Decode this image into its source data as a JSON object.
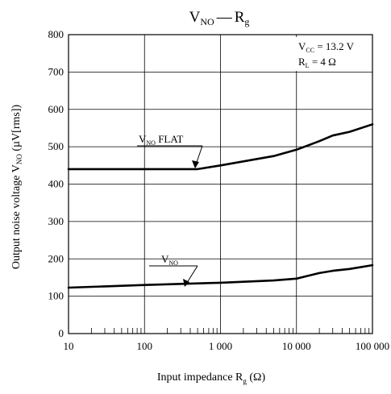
{
  "chart_data": {
    "type": "line",
    "title": {
      "main": "V",
      "main_sub": "NO",
      "dash": "—",
      "rhs": "R",
      "rhs_sub": "g"
    },
    "xlabel": {
      "text": "Input impedance  R",
      "sub": "g",
      "unit": "  (Ω)"
    },
    "ylabel": {
      "text": "Output noise voltage  V",
      "sub": "NO",
      "unit": "  (µV[rms])"
    },
    "x_scale": "log",
    "xlim": [
      10,
      100000
    ],
    "ylim": [
      0,
      800
    ],
    "x_ticks": [
      {
        "value": 10,
        "label": "10"
      },
      {
        "value": 100,
        "label": "100"
      },
      {
        "value": 1000,
        "label": "1 000"
      },
      {
        "value": 10000,
        "label": "10 000"
      },
      {
        "value": 100000,
        "label": "100 000"
      }
    ],
    "y_ticks": [
      0,
      100,
      200,
      300,
      400,
      500,
      600,
      700,
      800
    ],
    "y_tick_labels": [
      "0",
      "100",
      "200",
      "300",
      "400",
      "500",
      "600",
      "700",
      "800"
    ],
    "grid": true,
    "conditions": [
      {
        "text": "V",
        "sub": "CC",
        "rest": " = 13.2 V"
      },
      {
        "text": "R",
        "sub": "L",
        "rest": " = 4 Ω"
      }
    ],
    "series": [
      {
        "name": "V_NO FLAT",
        "label": {
          "main": "V",
          "sub": "NO",
          "rest": " FLAT"
        },
        "x": [
          10,
          100,
          500,
          1000,
          5000,
          10000,
          20000,
          30000,
          50000,
          100000
        ],
        "y": [
          440,
          440,
          440,
          450,
          475,
          492,
          515,
          530,
          540,
          560
        ]
      },
      {
        "name": "V_NO",
        "label": {
          "main": "V",
          "sub": "NO",
          "rest": ""
        },
        "x": [
          10,
          100,
          1000,
          5000,
          10000,
          20000,
          30000,
          50000,
          100000
        ],
        "y": [
          123,
          130,
          136,
          142,
          147,
          162,
          168,
          173,
          183
        ]
      }
    ]
  }
}
